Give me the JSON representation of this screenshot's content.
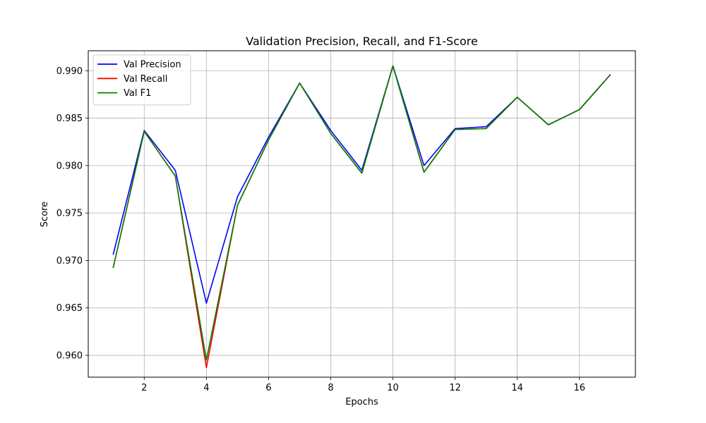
{
  "chart_data": {
    "type": "line",
    "title": "Validation Precision, Recall, and F1-Score",
    "xlabel": "Epochs",
    "ylabel": "Score",
    "xlim": [
      0.2,
      17.8
    ],
    "ylim": [
      0.9577,
      0.9921
    ],
    "xticks": [
      2,
      4,
      6,
      8,
      10,
      12,
      14,
      16
    ],
    "xtick_labels": [
      "2",
      "4",
      "6",
      "8",
      "10",
      "12",
      "14",
      "16"
    ],
    "yticks": [
      0.96,
      0.965,
      0.97,
      0.975,
      0.98,
      0.985,
      0.99
    ],
    "ytick_labels": [
      "0.960",
      "0.965",
      "0.970",
      "0.975",
      "0.980",
      "0.985",
      "0.990"
    ],
    "grid": true,
    "legend_position": "upper-left",
    "x": [
      1,
      2,
      3,
      4,
      5,
      6,
      7,
      8,
      9,
      10,
      11,
      12,
      13,
      14,
      15,
      16,
      17
    ],
    "series": [
      {
        "name": "Val Precision",
        "color": "#0000ff",
        "values": [
          0.9706,
          0.9837,
          0.9795,
          0.9655,
          0.9767,
          0.983,
          0.9887,
          0.9837,
          0.9795,
          0.9905,
          0.98,
          0.9839,
          0.9841,
          0.9872,
          0.9843,
          0.9859,
          0.9896
        ]
      },
      {
        "name": "Val Recall",
        "color": "#ff0000",
        "values": [
          0.9692,
          0.9836,
          0.9789,
          0.9587,
          0.9758,
          0.9827,
          0.9887,
          0.9834,
          0.9792,
          0.9905,
          0.9793,
          0.9838,
          0.9839,
          0.9872,
          0.9843,
          0.9859,
          0.9896
        ]
      },
      {
        "name": "Val F1",
        "color": "#008000",
        "values": [
          0.9692,
          0.9836,
          0.9789,
          0.9595,
          0.9758,
          0.9827,
          0.9887,
          0.9834,
          0.9792,
          0.9905,
          0.9793,
          0.9838,
          0.9839,
          0.9872,
          0.9843,
          0.9859,
          0.9896
        ]
      }
    ]
  }
}
